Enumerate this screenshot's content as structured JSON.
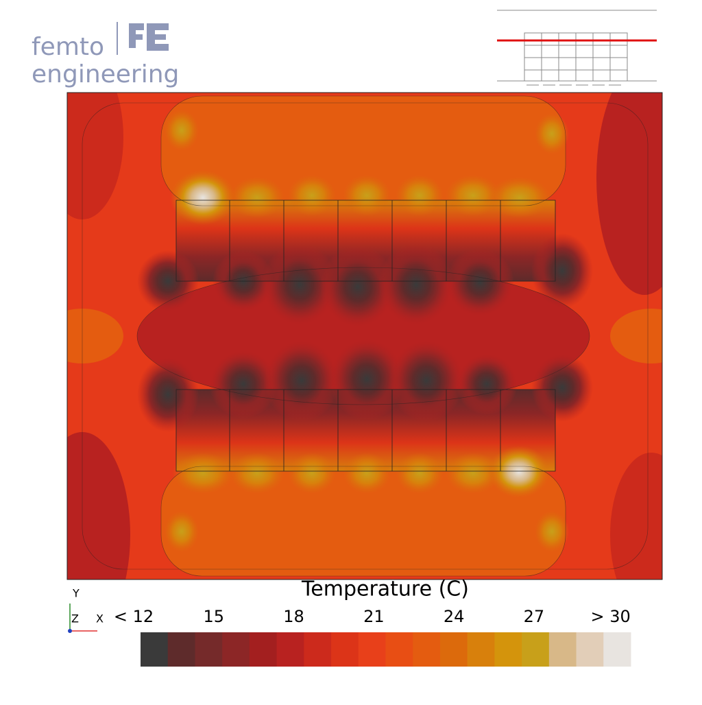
{
  "logo": {
    "line1": "femto",
    "line2": "engineering"
  },
  "legend": {
    "title": "Temperature (C)",
    "ticks": [
      "< 12",
      "15",
      "18",
      "21",
      "24",
      "27",
      "> 30"
    ],
    "colors": [
      "#3a3a3a",
      "#5e2b2b",
      "#752a2a",
      "#8c2626",
      "#a31f1f",
      "#b82220",
      "#cc2a1c",
      "#dc3418",
      "#e8401a",
      "#e84e14",
      "#e45c10",
      "#dc6a0c",
      "#d8800c",
      "#d4940c",
      "#c8a01a",
      "#d8b888",
      "#e2ceb8",
      "#e8e4e0"
    ]
  },
  "triad": {
    "y": "Y",
    "z": "Z",
    "x": "X"
  }
}
